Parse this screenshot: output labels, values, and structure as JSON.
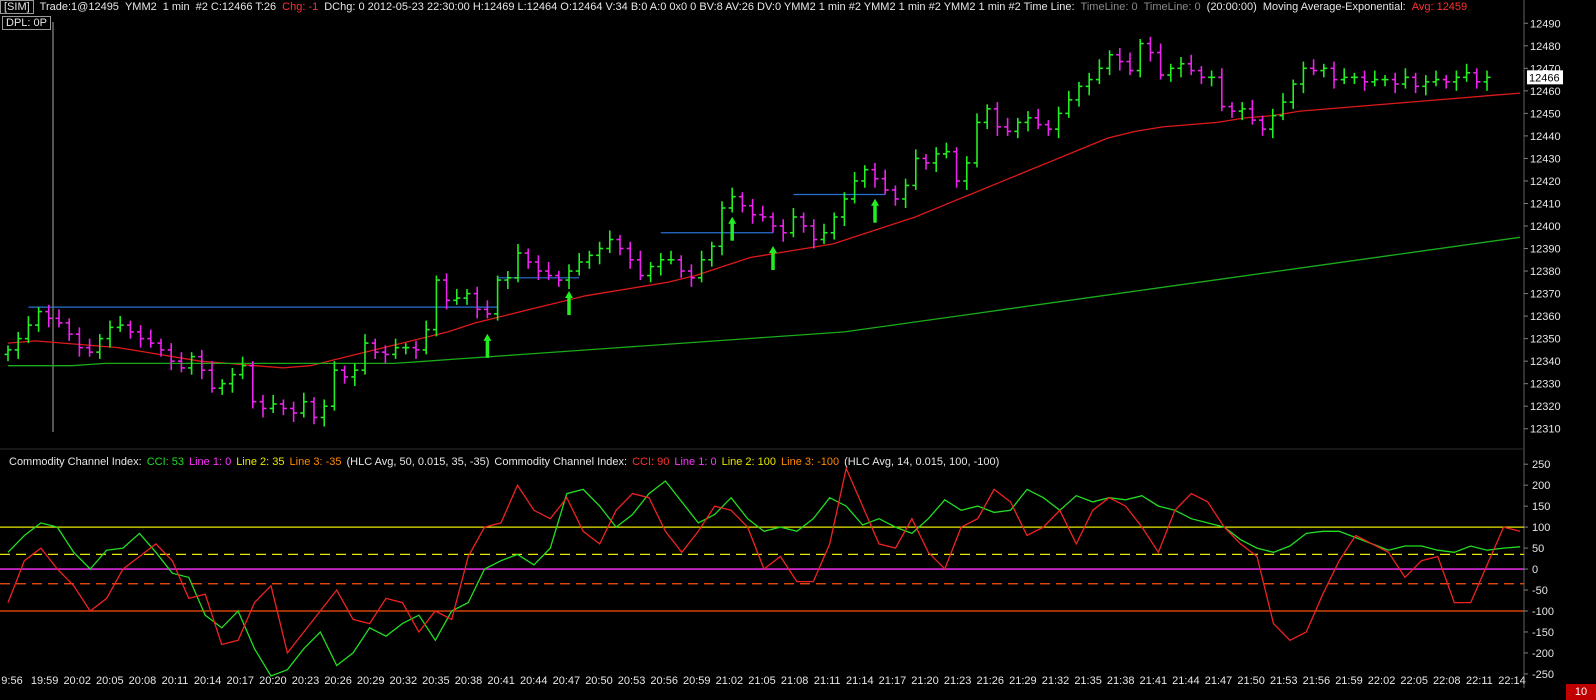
{
  "header": {
    "sim": "[SIM]",
    "trade": "Trade:1@12495",
    "symbol": "YMM2",
    "interval": "1 min",
    "close_text": "#2 C:12466 T:26",
    "chg": "Chg: -1",
    "rest": "DChg: 0 2012-05-23 22:30:00 H:12469 L:12464 O:12464 V:34 B:0 A:0 0x0 0 BV:8 AV:26 DV:0 YMM2  1 min   #2 YMM2  1 min   #2 YMM2  1 min   #2 Time Line:",
    "timeline1": "TimeLine: 0",
    "timeline2": "TimeLine: 0",
    "timeline_time": "(20:00:00)",
    "ma_label": "Moving Average-Exponential:",
    "ma_value": "Avg: 12459",
    "dpl": "DPL: 0P"
  },
  "cci_header": {
    "title1": "Commodity Channel Index:",
    "cci1": "CCI: 53",
    "line1_1": "Line 1: 0",
    "line2_1": "Line 2: 35",
    "line3_1": "Line 3: -35",
    "params1": "(HLC Avg, 50, 0.015, 35, -35)",
    "title2": "Commodity Channel Index:",
    "cci2": "CCI: 90",
    "line1_2": "Line 1: 0",
    "line2_2": "Line 2: 100",
    "line3_2": "Line 3: -100",
    "params2": "(HLC Avg, 14, 0.015, 100, -100)"
  },
  "corner_value": "10",
  "chart_data": [
    {
      "type": "ohlc",
      "interval": "1 min",
      "ylim": [
        12305,
        12495
      ],
      "yticks": [
        12310,
        12320,
        12330,
        12340,
        12350,
        12360,
        12370,
        12380,
        12390,
        12400,
        12410,
        12420,
        12430,
        12440,
        12450,
        12460,
        12470,
        12480,
        12490
      ],
      "last_price_label": "12466",
      "up_color": "#22ee22",
      "down_color": "#ee22ee",
      "closes": [
        12345,
        12350,
        12356,
        12362,
        12359,
        12357,
        12352,
        12346,
        12344,
        12350,
        12355,
        12356,
        12353,
        12350,
        12348,
        12345,
        12340,
        12337,
        12342,
        12336,
        12328,
        12330,
        12334,
        12338,
        12322,
        12319,
        12321,
        12319,
        12317,
        12322,
        12315,
        12320,
        12336,
        12333,
        12336,
        12348,
        12344,
        12343,
        12346,
        12346,
        12345,
        12354,
        12376,
        12367,
        12368,
        12370,
        12363,
        12361,
        12376,
        12377,
        12388,
        12384,
        12380,
        12378,
        12376,
        12380,
        12384,
        12387,
        12390,
        12394,
        12390,
        12385,
        12378,
        12382,
        12385,
        12385,
        12380,
        12377,
        12385,
        12391,
        12408,
        12413,
        12409,
        12405,
        12404,
        12400,
        12397,
        12404,
        12400,
        12394,
        12397,
        12404,
        12412,
        12420,
        12425,
        12421,
        12416,
        12412,
        12418,
        12430,
        12428,
        12432,
        12433,
        12420,
        12428,
        12446,
        12452,
        12444,
        12442,
        12446,
        12448,
        12445,
        12443,
        12450,
        12456,
        12462,
        12465,
        12470,
        12476,
        12473,
        12469,
        12481,
        12477,
        12467,
        12470,
        12472,
        12469,
        12466,
        12466,
        12453,
        12451,
        12452,
        12447,
        12443,
        12449,
        12455,
        12463,
        12470,
        12469,
        12470,
        12465,
        12466,
        12466,
        12464,
        12465,
        12465,
        12463,
        12466,
        12462,
        12464,
        12465,
        12464,
        12466,
        12468,
        12464,
        12466
      ],
      "highlight_levels": [
        {
          "price": 12364,
          "from_min": 2,
          "to_min": 48
        },
        {
          "price": 12377,
          "from_min": 48,
          "to_min": 56
        },
        {
          "price": 12397,
          "from_min": 64,
          "to_min": 75
        },
        {
          "price": 12414,
          "from_min": 77,
          "to_min": 86
        }
      ],
      "signal_arrows_min": [
        47,
        55,
        71,
        75,
        85
      ],
      "series": [
        {
          "name": "Avg",
          "type": "ema",
          "color": "#dd1a1a",
          "values": [
            12348,
            12349,
            12348,
            12347,
            12346,
            12344,
            12342,
            12340,
            12339,
            12338,
            12337,
            12338,
            12341,
            12344,
            12347,
            12350,
            12353,
            12357,
            12360,
            12363,
            12366,
            12369,
            12371,
            12373,
            12375,
            12378,
            12382,
            12386,
            12388,
            12390,
            12392,
            12396,
            12400,
            12404,
            12409,
            12414,
            12419,
            12424,
            12429,
            12434,
            12439,
            12442,
            12444,
            12445,
            12446,
            12448,
            12449,
            12451,
            12452,
            12453,
            12454,
            12455,
            12456,
            12457,
            12458,
            12459
          ]
        },
        {
          "name": "",
          "type": "ema",
          "color": "#1aaa1a",
          "values": [
            12338,
            12338,
            12338,
            12339,
            12339,
            12339,
            12339,
            12339,
            12339,
            12339,
            12339,
            12339,
            12339,
            12340,
            12341,
            12342,
            12343,
            12344,
            12345,
            12346,
            12347,
            12348,
            12349,
            12350,
            12351,
            12352,
            12353,
            12355,
            12357,
            12359,
            12361,
            12363,
            12365,
            12367,
            12369,
            12371,
            12373,
            12375,
            12377,
            12379,
            12381,
            12383,
            12385,
            12387,
            12389,
            12391,
            12393,
            12395
          ]
        }
      ]
    },
    {
      "type": "line",
      "ylim": [
        -255,
        260
      ],
      "yticks": [
        -250,
        -200,
        -150,
        -100,
        -50,
        0,
        50,
        100,
        150,
        200,
        250
      ],
      "levels": [
        {
          "value": 100,
          "color": "#e8e800",
          "style": "solid"
        },
        {
          "value": 35,
          "color": "#e8e800",
          "style": "dashed"
        },
        {
          "value": 0,
          "color": "#ff33ff",
          "style": "solid"
        },
        {
          "value": -35,
          "color": "#ff5010",
          "style": "dashed"
        },
        {
          "value": -100,
          "color": "#ff5010",
          "style": "solid"
        }
      ],
      "series": [
        {
          "name": "CCI",
          "color": "#22dd22",
          "period": 50,
          "values": [
            40,
            80,
            110,
            100,
            40,
            0,
            45,
            50,
            85,
            40,
            -10,
            -20,
            -110,
            -140,
            -100,
            -190,
            -260,
            -240,
            -190,
            -150,
            -230,
            -200,
            -140,
            -160,
            -130,
            -110,
            -170,
            -100,
            -80,
            0,
            20,
            35,
            10,
            50,
            180,
            190,
            150,
            100,
            130,
            180,
            210,
            160,
            110,
            130,
            170,
            120,
            90,
            100,
            90,
            120,
            170,
            150,
            105,
            120,
            100,
            85,
            120,
            165,
            140,
            150,
            135,
            140,
            190,
            170,
            140,
            175,
            160,
            170,
            165,
            175,
            150,
            140,
            120,
            110,
            100,
            70,
            50,
            40,
            55,
            85,
            90,
            90,
            75,
            60,
            45,
            55,
            55,
            45,
            40,
            55,
            45,
            50,
            53
          ]
        },
        {
          "name": "CCI",
          "color": "#ee2222",
          "period": 14,
          "values": [
            -80,
            20,
            50,
            0,
            -40,
            -100,
            -70,
            0,
            30,
            60,
            20,
            -70,
            -60,
            -180,
            -170,
            -80,
            -40,
            -200,
            -150,
            -100,
            -50,
            -120,
            -130,
            -70,
            -80,
            -150,
            -100,
            -120,
            30,
            100,
            110,
            200,
            140,
            120,
            170,
            90,
            60,
            140,
            180,
            170,
            90,
            40,
            90,
            150,
            140,
            100,
            0,
            30,
            -30,
            -30,
            60,
            240,
            150,
            60,
            50,
            120,
            40,
            0,
            100,
            120,
            190,
            160,
            80,
            100,
            140,
            60,
            140,
            170,
            150,
            100,
            40,
            140,
            180,
            160,
            100,
            60,
            30,
            -130,
            -170,
            -150,
            -60,
            20,
            80,
            60,
            40,
            -20,
            20,
            30,
            -80,
            -80,
            10,
            100,
            90
          ]
        }
      ]
    }
  ],
  "time_labels": [
    "9:56",
    "19:59",
    "20:02",
    "20:05",
    "20:08",
    "20:11",
    "20:14",
    "20:17",
    "20:20",
    "20:23",
    "20:26",
    "20:29",
    "20:32",
    "20:35",
    "20:38",
    "20:41",
    "20:44",
    "20:47",
    "20:50",
    "20:53",
    "20:56",
    "20:59",
    "21:02",
    "21:05",
    "21:08",
    "21:11",
    "21:14",
    "21:17",
    "21:20",
    "21:23",
    "21:26",
    "21:29",
    "21:32",
    "21:35",
    "21:38",
    "21:41",
    "21:44",
    "21:47",
    "21:50",
    "21:53",
    "21:56",
    "21:59",
    "22:02",
    "22:05",
    "22:08",
    "22:11",
    "22:14"
  ]
}
